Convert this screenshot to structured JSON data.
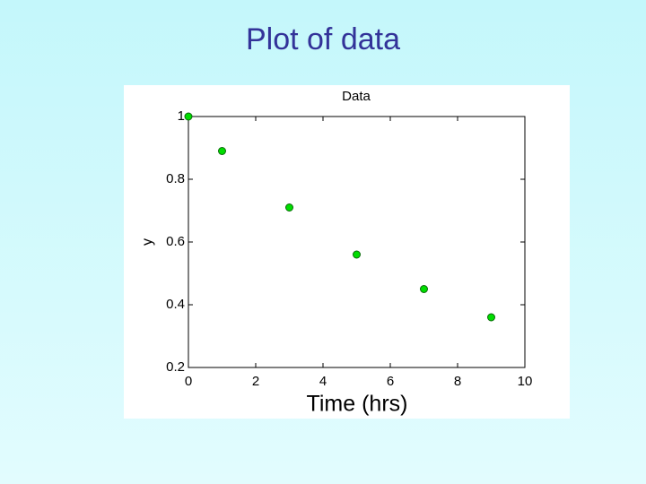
{
  "slide_title": "Plot of data",
  "chart_data": {
    "type": "scatter",
    "title": "Data",
    "x_label": "Time (hrs)",
    "y_label": "y",
    "x": [
      0,
      1,
      3,
      5,
      7,
      9
    ],
    "values": [
      1,
      0.89,
      0.71,
      0.56,
      0.45,
      0.36
    ],
    "color": "#00dd00",
    "xlim": [
      0,
      10
    ],
    "xticks": [
      0,
      2,
      4,
      6,
      8,
      10
    ],
    "ylim": [
      0.2,
      1
    ],
    "yticks": [
      0.2,
      0.4,
      0.6,
      0.8,
      1
    ],
    "grid": false
  }
}
